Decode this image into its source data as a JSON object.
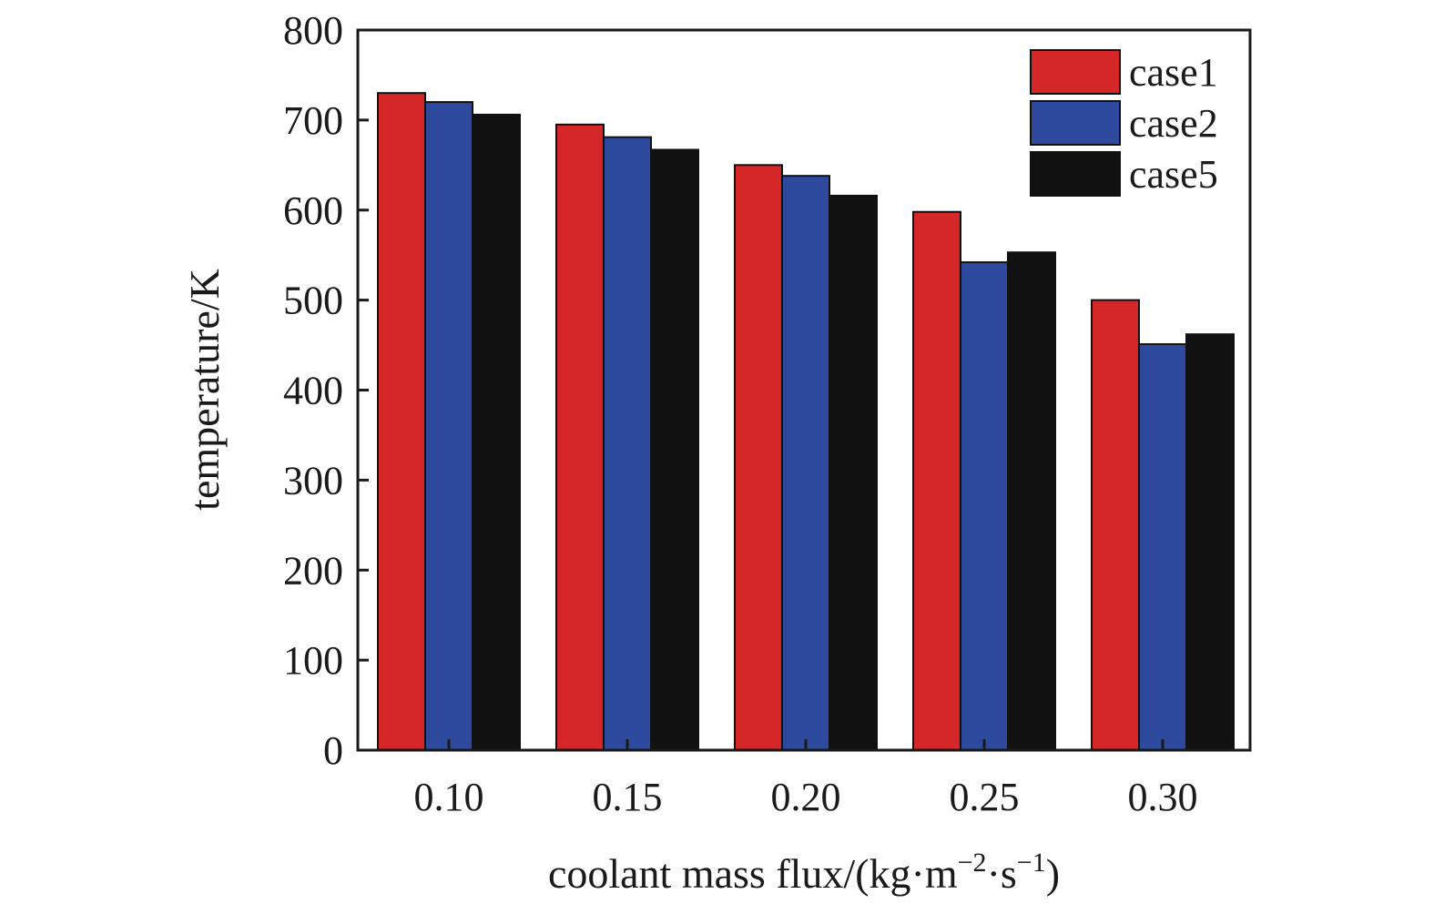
{
  "chart_data": {
    "type": "bar",
    "categories": [
      "0.10",
      "0.15",
      "0.20",
      "0.25",
      "0.30"
    ],
    "series": [
      {
        "name": "case1",
        "color": "#d62728",
        "values": [
          730,
          695,
          650,
          598,
          500
        ]
      },
      {
        "name": "case2",
        "color": "#2e4a9e",
        "values": [
          720,
          681,
          638,
          542,
          451
        ]
      },
      {
        "name": "case5",
        "color": "#111111",
        "values": [
          706,
          667,
          616,
          553,
          462
        ]
      }
    ],
    "y_ticks": [
      "0",
      "100",
      "200",
      "300",
      "400",
      "500",
      "600",
      "700",
      "800"
    ],
    "ylim": [
      0,
      800
    ],
    "xlabel": "coolant mass flux/(kg·m",
    "xlabel_sup1": "−2",
    "xlabel_mid": "·s",
    "xlabel_sup2": "−1",
    "xlabel_end": ")",
    "ylabel": "temperature/K",
    "legend_position": "top-right",
    "grid": false
  }
}
